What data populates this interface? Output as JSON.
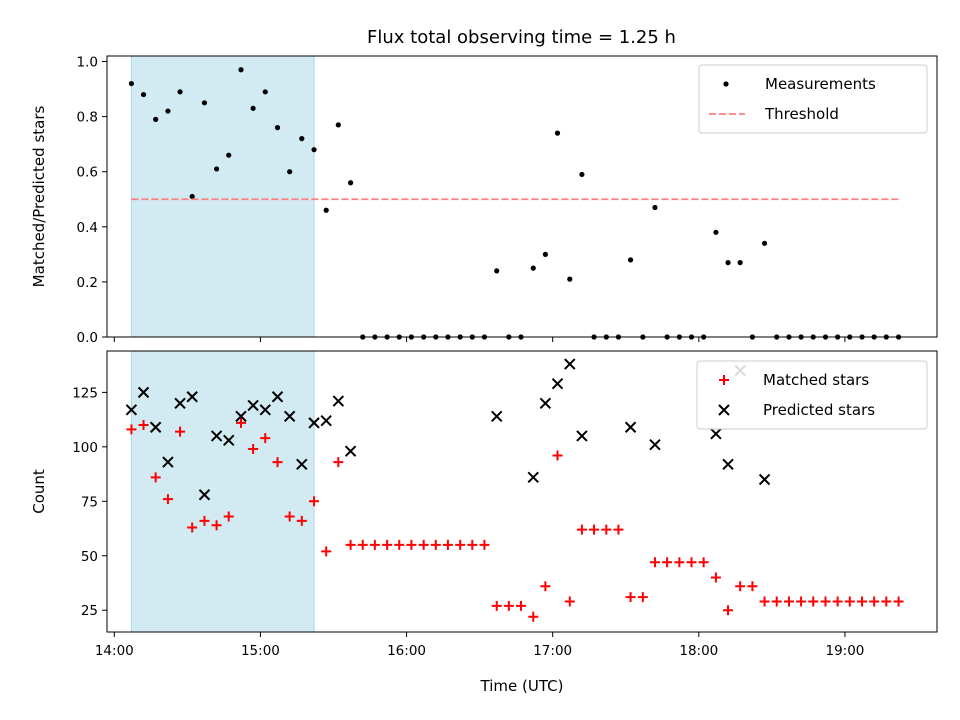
{
  "title": "Flux total observing time = 1.25 h",
  "chart_data": [
    {
      "type": "scatter",
      "ylabel": "Matched/Predicted stars",
      "xlim": [
        13.95,
        19.63
      ],
      "ylim": [
        0,
        1.02
      ],
      "yticks": [
        0.0,
        0.2,
        0.4,
        0.6,
        0.8,
        1.0
      ],
      "ytick_labels": [
        "0.0",
        "0.2",
        "0.4",
        "0.6",
        "0.8",
        "1.0"
      ],
      "shaded_region": {
        "x": [
          14.117,
          15.367
        ],
        "color": "#add8e6"
      },
      "legend_position": "upper right",
      "grid": false,
      "series": [
        {
          "name": "Measurements",
          "marker": "dot",
          "color": "#000000",
          "x": [
            14.117,
            14.2,
            14.283,
            14.367,
            14.45,
            14.533,
            14.617,
            14.7,
            14.783,
            14.867,
            14.95,
            15.033,
            15.117,
            15.2,
            15.283,
            15.367,
            15.45,
            15.533,
            15.617,
            15.7,
            15.783,
            15.867,
            15.95,
            16.033,
            16.117,
            16.2,
            16.283,
            16.367,
            16.45,
            16.533,
            16.617,
            16.7,
            16.783,
            16.867,
            16.95,
            17.033,
            17.117,
            17.2,
            17.283,
            17.367,
            17.45,
            17.533,
            17.617,
            17.7,
            17.783,
            17.867,
            17.95,
            18.033,
            18.117,
            18.2,
            18.283,
            18.367,
            18.45,
            18.533,
            18.617,
            18.7,
            18.783,
            18.867,
            18.95,
            19.033,
            19.117,
            19.2,
            19.283,
            19.367
          ],
          "y": [
            0.92,
            0.88,
            0.79,
            0.82,
            0.89,
            0.51,
            0.85,
            0.61,
            0.66,
            0.97,
            0.83,
            0.89,
            0.76,
            0.6,
            0.72,
            0.68,
            0.46,
            0.77,
            0.56,
            0,
            0,
            0,
            0,
            0,
            0,
            0,
            0,
            0,
            0,
            0,
            0.24,
            0,
            0,
            0.25,
            0.3,
            0.74,
            0.21,
            0.59,
            0,
            0,
            0,
            0.28,
            0,
            0.47,
            0,
            0,
            0,
            0,
            0.38,
            0.27,
            0.27,
            0,
            0.34,
            0,
            0,
            0,
            0,
            0,
            0,
            0,
            0,
            0,
            0,
            0
          ]
        },
        {
          "name": "Threshold",
          "style": "dashed",
          "color": "#ff7f7f",
          "x": [
            14.117,
            19.367
          ],
          "y": [
            0.5,
            0.5
          ]
        }
      ]
    },
    {
      "type": "scatter",
      "xlabel": "Time (UTC)",
      "ylabel": "Count",
      "xlim": [
        13.95,
        19.63
      ],
      "ylim": [
        15,
        144
      ],
      "yticks": [
        25,
        50,
        75,
        100,
        125
      ],
      "ytick_labels": [
        "25",
        "50",
        "75",
        "100",
        "125"
      ],
      "xticks": [
        14,
        15,
        16,
        17,
        18,
        19
      ],
      "xtick_labels": [
        "14:00",
        "15:00",
        "16:00",
        "17:00",
        "18:00",
        "19:00"
      ],
      "shaded_region": {
        "x": [
          14.117,
          15.367
        ],
        "color": "#add8e6"
      },
      "legend_position": "upper right",
      "grid": false,
      "series": [
        {
          "name": "Matched stars",
          "marker": "plus",
          "color": "#ff0000",
          "x": [
            14.117,
            14.2,
            14.283,
            14.367,
            14.45,
            14.533,
            14.617,
            14.7,
            14.783,
            14.867,
            14.95,
            15.033,
            15.117,
            15.2,
            15.283,
            15.367,
            15.45,
            15.533,
            15.617,
            15.7,
            15.783,
            15.867,
            15.95,
            16.033,
            16.117,
            16.2,
            16.283,
            16.367,
            16.45,
            16.533,
            16.617,
            16.7,
            16.783,
            16.867,
            16.95,
            17.033,
            17.117,
            17.2,
            17.283,
            17.367,
            17.45,
            17.533,
            17.617,
            17.7,
            17.783,
            17.867,
            17.95,
            18.033,
            18.117,
            18.2,
            18.283,
            18.367,
            18.45,
            18.533,
            18.617,
            18.7,
            18.783,
            18.867,
            18.95,
            19.033,
            19.117,
            19.2,
            19.283,
            19.367
          ],
          "y": [
            108,
            110,
            86,
            76,
            107,
            63,
            66,
            64,
            68,
            111,
            99,
            104,
            93,
            68,
            66,
            75,
            52,
            93,
            55,
            55,
            55,
            55,
            55,
            55,
            55,
            55,
            55,
            55,
            55,
            55,
            27,
            27,
            27,
            22,
            36,
            96,
            29,
            62,
            62,
            62,
            62,
            31,
            31,
            47,
            47,
            47,
            47,
            47,
            40,
            25,
            36,
            36,
            29,
            29,
            29,
            29,
            29,
            29,
            29,
            29,
            29,
            29,
            29,
            29
          ]
        },
        {
          "name": "Predicted stars",
          "marker": "x",
          "color": "#000000",
          "x": [
            14.117,
            14.2,
            14.283,
            14.367,
            14.45,
            14.533,
            14.617,
            14.7,
            14.783,
            14.867,
            14.95,
            15.033,
            15.117,
            15.2,
            15.283,
            15.367,
            15.45,
            15.533,
            15.617,
            16.617,
            16.867,
            16.95,
            17.033,
            17.117,
            17.2,
            17.533,
            17.7,
            18.117,
            18.2,
            18.283,
            18.45
          ],
          "y": [
            117,
            125,
            109,
            93,
            120,
            123,
            78,
            105,
            103,
            114,
            119,
            117,
            123,
            114,
            92,
            111,
            112,
            121,
            98,
            114,
            86,
            120,
            129,
            138,
            105,
            109,
            101,
            106,
            92,
            135,
            85
          ]
        }
      ]
    }
  ]
}
